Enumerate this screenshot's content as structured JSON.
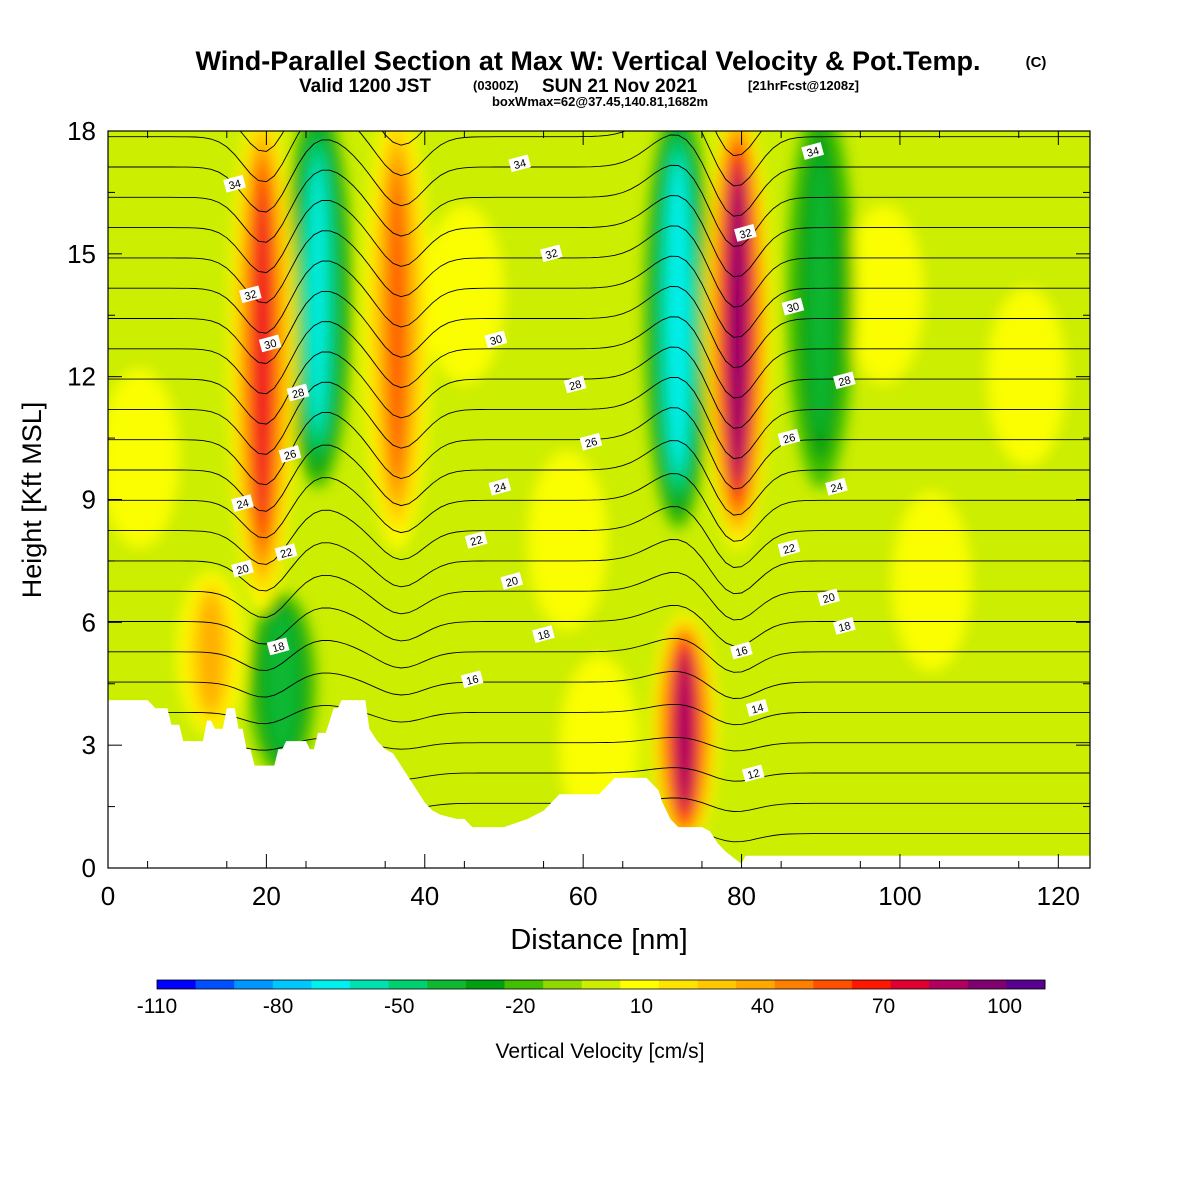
{
  "header": {
    "title_main": "Wind-Parallel Section at Max W: Vertical Velocity & Pot.Temp.",
    "title_badge": "(C)",
    "valid_prefix": "Valid 1200 JST",
    "valid_utc": "(0300Z)",
    "valid_date": "SUN 21 Nov 2021",
    "valid_fcst": "[21hrFcst@1208z]",
    "box_info": "boxWmax=62@37.45,140.81,1682m"
  },
  "chart_data": {
    "type": "heatmap",
    "xlabel": "Distance [nm]",
    "ylabel": "Height [Kft MSL]",
    "xlim": [
      0,
      124
    ],
    "ylim": [
      0,
      18
    ],
    "x_ticks": [
      0,
      20,
      40,
      60,
      80,
      100,
      120
    ],
    "y_ticks": [
      0,
      3,
      6,
      9,
      12,
      15,
      18
    ],
    "grid": false,
    "colorbar": {
      "label": "Vertical Velocity [cm/s]",
      "placement": "bottom",
      "tick_labels": [
        "-110",
        "-80",
        "-50",
        "-20",
        "10",
        "40",
        "70",
        "100"
      ],
      "tick_values": [
        -110,
        -80,
        -50,
        -20,
        10,
        40,
        70,
        100
      ],
      "levels": [
        -110,
        -100,
        -90,
        -80,
        -70,
        -60,
        -50,
        -40,
        -30,
        -20,
        -10,
        0,
        10,
        20,
        30,
        40,
        50,
        60,
        70,
        80,
        90,
        100,
        110
      ],
      "colors": [
        "#0000ff",
        "#0050ff",
        "#0096ff",
        "#00c8ff",
        "#00f0f0",
        "#00e0b0",
        "#00d070",
        "#10b830",
        "#00a010",
        "#40c000",
        "#90d800",
        "#ccee00",
        "#ffff00",
        "#ffe400",
        "#ffc800",
        "#ffa800",
        "#ff8000",
        "#ff5000",
        "#ff1800",
        "#e00030",
        "#b00060",
        "#800070",
        "#580090"
      ]
    },
    "updrafts": [
      {
        "x": 19.5,
        "z_bottom": 7,
        "z_top": 18,
        "peak": 80
      },
      {
        "x": 36.5,
        "z_bottom": 8.5,
        "z_top": 18,
        "peak": 60
      },
      {
        "x": 79.5,
        "z_bottom": 8.5,
        "z_top": 18,
        "peak": 105
      },
      {
        "x": 72.8,
        "z_bottom": 1.2,
        "z_top": 5.5,
        "peak": 100
      },
      {
        "x": 13,
        "z_bottom": 4,
        "z_top": 6.5,
        "peak": 40
      }
    ],
    "downdrafts": [
      {
        "x": 26.5,
        "z_bottom": 10,
        "z_top": 18,
        "peak": -60
      },
      {
        "x": 72,
        "z_bottom": 9,
        "z_top": 18,
        "peak": -65
      },
      {
        "x": 22,
        "z_bottom": 3,
        "z_top": 6,
        "peak": -35
      },
      {
        "x": 90,
        "z_bottom": 10,
        "z_top": 18,
        "peak": -30
      }
    ],
    "terrain_kft": [
      [
        0,
        4.1
      ],
      [
        5,
        4.1
      ],
      [
        6,
        3.9
      ],
      [
        7.5,
        3.9
      ],
      [
        8,
        3.5
      ],
      [
        9,
        3.5
      ],
      [
        9.5,
        3.1
      ],
      [
        12,
        3.1
      ],
      [
        12.5,
        3.6
      ],
      [
        13,
        3.6
      ],
      [
        13.5,
        3.4
      ],
      [
        14.5,
        3.4
      ],
      [
        15,
        3.9
      ],
      [
        16,
        3.9
      ],
      [
        16.5,
        3.4
      ],
      [
        17,
        3.4
      ],
      [
        17.5,
        2.9
      ],
      [
        18,
        2.9
      ],
      [
        18.5,
        2.5
      ],
      [
        21,
        2.5
      ],
      [
        21.5,
        2.9
      ],
      [
        22,
        2.9
      ],
      [
        22.5,
        3.1
      ],
      [
        25,
        3.1
      ],
      [
        25.5,
        2.9
      ],
      [
        26,
        2.9
      ],
      [
        26.5,
        3.3
      ],
      [
        27.5,
        3.3
      ],
      [
        28.5,
        3.9
      ],
      [
        29,
        3.9
      ],
      [
        29.5,
        4.1
      ],
      [
        32.5,
        4.1
      ],
      [
        33,
        3.4
      ],
      [
        34,
        3.1
      ],
      [
        35,
        2.9
      ],
      [
        36,
        2.8
      ],
      [
        37,
        2.5
      ],
      [
        38,
        2.2
      ],
      [
        39,
        1.9
      ],
      [
        40,
        1.6
      ],
      [
        41,
        1.4
      ],
      [
        42,
        1.3
      ],
      [
        44,
        1.2
      ],
      [
        45,
        1.2
      ],
      [
        46,
        1.0
      ],
      [
        48,
        1.0
      ],
      [
        50,
        1.0
      ],
      [
        51.5,
        1.1
      ],
      [
        53,
        1.2
      ],
      [
        55,
        1.4
      ],
      [
        57,
        1.8
      ],
      [
        60,
        1.8
      ],
      [
        62,
        1.8
      ],
      [
        64,
        2.2
      ],
      [
        68,
        2.2
      ],
      [
        69.5,
        1.9
      ],
      [
        70,
        1.6
      ],
      [
        71,
        1.2
      ],
      [
        72,
        1.0
      ],
      [
        74,
        1.0
      ],
      [
        75,
        1.0
      ],
      [
        76,
        0.9
      ],
      [
        77,
        0.6
      ],
      [
        78,
        0.4
      ],
      [
        79,
        0.25
      ],
      [
        80,
        0.1
      ],
      [
        80.5,
        0.3
      ],
      [
        85,
        0.3
      ],
      [
        124,
        0.3
      ]
    ],
    "theta_contours": {
      "levels": [
        10,
        11,
        12,
        13,
        14,
        15,
        16,
        17,
        18,
        19,
        20,
        21,
        22,
        23,
        24,
        25,
        26,
        27,
        28,
        29,
        30,
        31,
        32,
        33,
        34,
        35
      ],
      "labels": [
        {
          "text": "34",
          "x": 16,
          "y": 16.7
        },
        {
          "text": "32",
          "x": 18,
          "y": 14.0
        },
        {
          "text": "30",
          "x": 20.5,
          "y": 12.8
        },
        {
          "text": "28",
          "x": 24,
          "y": 11.6
        },
        {
          "text": "26",
          "x": 23,
          "y": 10.1
        },
        {
          "text": "24",
          "x": 17,
          "y": 8.9
        },
        {
          "text": "22",
          "x": 22.5,
          "y": 7.7
        },
        {
          "text": "20",
          "x": 17,
          "y": 7.3
        },
        {
          "text": "18",
          "x": 21.5,
          "y": 5.4
        },
        {
          "text": "16",
          "x": 46,
          "y": 4.6
        },
        {
          "text": "34",
          "x": 52,
          "y": 17.2
        },
        {
          "text": "32",
          "x": 56,
          "y": 15.0
        },
        {
          "text": "30",
          "x": 49,
          "y": 12.9
        },
        {
          "text": "28",
          "x": 59,
          "y": 11.8
        },
        {
          "text": "26",
          "x": 61,
          "y": 10.4
        },
        {
          "text": "24",
          "x": 49.5,
          "y": 9.3
        },
        {
          "text": "22",
          "x": 46.5,
          "y": 8.0
        },
        {
          "text": "20",
          "x": 51,
          "y": 7.0
        },
        {
          "text": "18",
          "x": 55,
          "y": 5.7
        },
        {
          "text": "34",
          "x": 89,
          "y": 17.5
        },
        {
          "text": "32",
          "x": 80.5,
          "y": 15.5
        },
        {
          "text": "30",
          "x": 86.5,
          "y": 13.7
        },
        {
          "text": "28",
          "x": 93,
          "y": 11.9
        },
        {
          "text": "26",
          "x": 86,
          "y": 10.5
        },
        {
          "text": "24",
          "x": 92,
          "y": 9.3
        },
        {
          "text": "22",
          "x": 86,
          "y": 7.8
        },
        {
          "text": "20",
          "x": 91,
          "y": 6.6
        },
        {
          "text": "18",
          "x": 93,
          "y": 5.9
        },
        {
          "text": "16",
          "x": 80,
          "y": 5.3
        },
        {
          "text": "14",
          "x": 82,
          "y": 3.9
        },
        {
          "text": "12",
          "x": 81.5,
          "y": 2.3
        }
      ]
    }
  }
}
